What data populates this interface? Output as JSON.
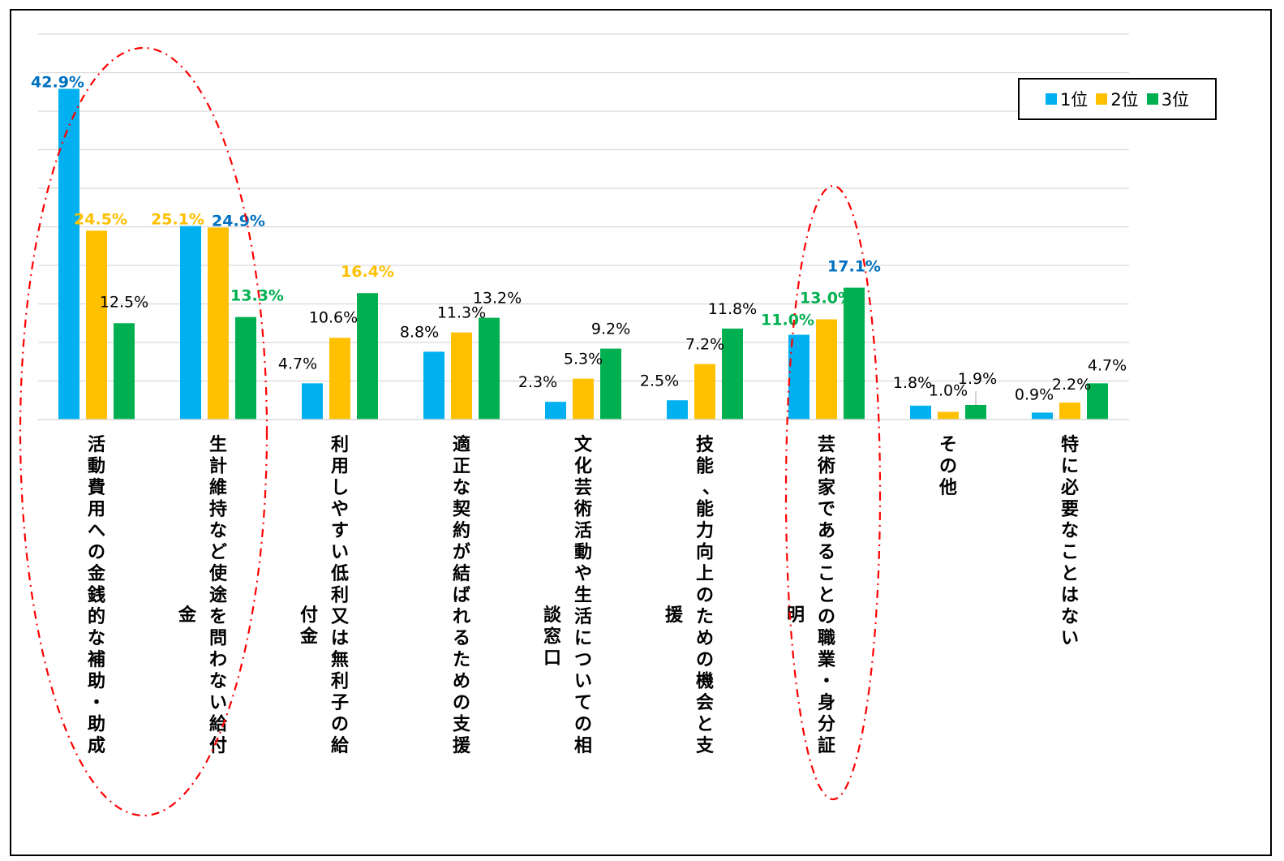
{
  "chart_data": {
    "type": "bar",
    "title": "",
    "xlabel": "",
    "ylabel": "",
    "ylim": [
      0,
      50
    ],
    "grid": true,
    "legend_position": "top-right",
    "categories": [
      "活動費用への金銭的な補助・助成",
      "生計維持など使途を問わない給付金",
      "利用しやすい低利又は無利子の給付金",
      "適正な契約が結ばれるための支援",
      "文化芸術活動や生活についての相談窓口",
      "技能、能力向上のための機会と支援",
      "芸術家であることの職業・身分証明",
      "その他",
      "特に必要なことはない"
    ],
    "series": [
      {
        "name": "1位",
        "color": "#00B0F0",
        "values": [
          42.9,
          25.1,
          4.7,
          8.8,
          2.3,
          2.5,
          11.0,
          1.8,
          0.9
        ],
        "labels": [
          "42.9%",
          "25.1%",
          "4.7%",
          "8.8%",
          "2.3%",
          "2.5%",
          "11.0%",
          "1.8%",
          "0.9%"
        ],
        "label_colors": [
          "#0070C0",
          "#FFC000",
          "#000000",
          "#000000",
          "#000000",
          "#000000",
          "#00B050",
          "#000000",
          "#000000"
        ]
      },
      {
        "name": "2位",
        "color": "#FFC000",
        "values": [
          24.5,
          24.9,
          10.6,
          11.3,
          5.3,
          7.2,
          13.0,
          1.0,
          2.2
        ],
        "labels": [
          "24.5%",
          "24.9%",
          "10.6%",
          "11.3%",
          "5.3%",
          "7.2%",
          "13.0%",
          "1.0%",
          "2.2%"
        ],
        "label_colors": [
          "#FFC000",
          "#0070C0",
          "#000000",
          "#000000",
          "#000000",
          "#000000",
          "#00B050",
          "#000000",
          "#000000"
        ]
      },
      {
        "name": "3位",
        "color": "#00B050",
        "values": [
          12.5,
          13.3,
          16.4,
          13.2,
          9.2,
          11.8,
          17.1,
          1.9,
          4.7
        ],
        "labels": [
          "12.5%",
          "13.3%",
          "16.4%",
          "13.2%",
          "9.2%",
          "11.8%",
          "17.1%",
          "1.9%",
          "4.7%"
        ],
        "label_colors": [
          "#000000",
          "#00B050",
          "#FFC000",
          "#000000",
          "#000000",
          "#000000",
          "#0070C0",
          "#000000",
          "#000000"
        ]
      }
    ],
    "highlight_color": "#FF0000",
    "highlighted_categories": [
      0,
      1,
      6
    ]
  }
}
